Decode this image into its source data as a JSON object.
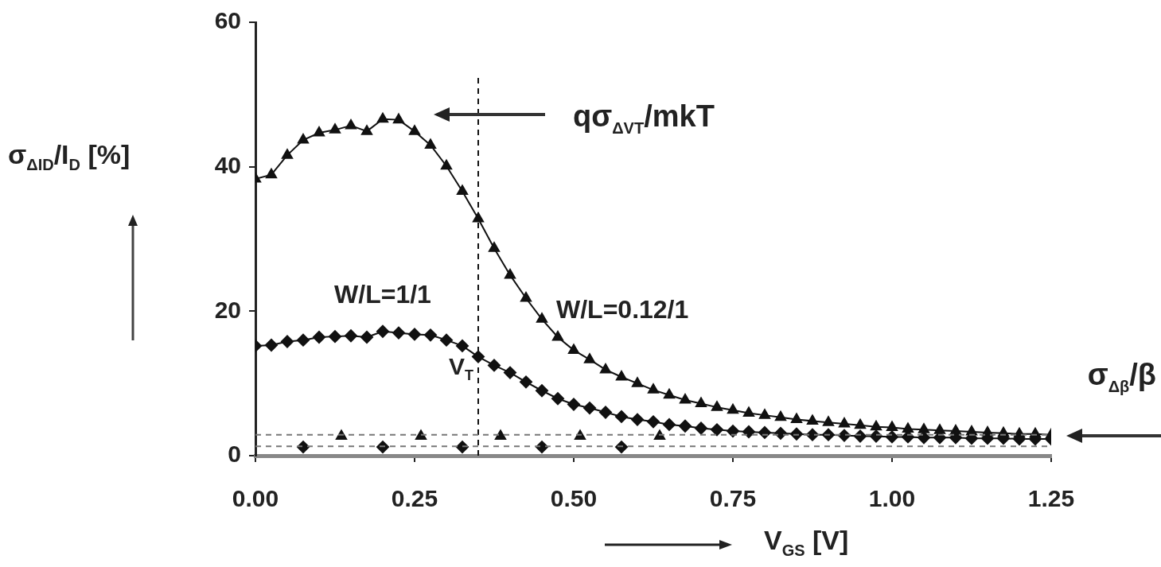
{
  "chart_data": {
    "type": "line",
    "xlabel": "V$_{GS}$ [V]",
    "ylabel": "σ$_{ΔID}$/I$_{D}$ [%]",
    "xlim": [
      0,
      1.25
    ],
    "ylim": [
      0,
      60
    ],
    "xticks": [
      {
        "value": 0,
        "label": "0.00"
      },
      {
        "value": 0.25,
        "label": "0.25"
      },
      {
        "value": 0.5,
        "label": "0.50"
      },
      {
        "value": 0.75,
        "label": "0.75"
      },
      {
        "value": 1,
        "label": "1.00"
      },
      {
        "value": 1.25,
        "label": "1.25"
      }
    ],
    "yticks": [
      0,
      20,
      40,
      60
    ],
    "grid": false,
    "legend": false,
    "x": [
      0,
      0.025,
      0.05,
      0.075,
      0.1,
      0.125,
      0.15,
      0.175,
      0.2,
      0.225,
      0.25,
      0.275,
      0.3,
      0.325,
      0.35,
      0.375,
      0.4,
      0.425,
      0.45,
      0.475,
      0.5,
      0.525,
      0.55,
      0.575,
      0.6,
      0.625,
      0.65,
      0.675,
      0.7,
      0.725,
      0.75,
      0.775,
      0.8,
      0.825,
      0.85,
      0.875,
      0.9,
      0.925,
      0.95,
      0.975,
      1,
      1.025,
      1.05,
      1.075,
      1.1,
      1.125,
      1.15,
      1.175,
      1.2,
      1.225,
      1.25
    ],
    "series": [
      {
        "name": "W/L=1/1",
        "marker": "diamond",
        "color": "#111111",
        "values": [
          15.2,
          15.3,
          15.8,
          16.0,
          16.4,
          16.5,
          16.6,
          16.4,
          17.2,
          17.0,
          16.8,
          16.7,
          16.0,
          15.2,
          13.7,
          12.5,
          11.5,
          10.2,
          9.0,
          7.9,
          7.1,
          6.6,
          6.0,
          5.4,
          5.0,
          4.7,
          4.3,
          4.1,
          3.8,
          3.6,
          3.4,
          3.3,
          3.2,
          3.1,
          3.0,
          2.9,
          2.9,
          2.8,
          2.7,
          2.7,
          2.6,
          2.6,
          2.5,
          2.5,
          2.5,
          2.4,
          2.4,
          2.4,
          2.3,
          2.3,
          2.3
        ]
      },
      {
        "name": "W/L=0.12/1",
        "marker": "triangle",
        "color": "#111111",
        "values": [
          38.3,
          38.9,
          41.6,
          43.7,
          44.7,
          45.1,
          45.7,
          44.9,
          46.6,
          46.5,
          44.9,
          43.0,
          40.1,
          36.6,
          32.8,
          28.7,
          25.0,
          21.8,
          18.9,
          16.4,
          14.6,
          13.3,
          11.9,
          10.9,
          10.0,
          9.1,
          8.4,
          7.7,
          7.2,
          6.7,
          6.3,
          5.9,
          5.6,
          5.3,
          5.0,
          4.8,
          4.6,
          4.4,
          4.2,
          4.0,
          3.9,
          3.7,
          3.6,
          3.5,
          3.4,
          3.3,
          3.2,
          3.1,
          3.0,
          3.0,
          2.9
        ]
      },
      {
        "type": "scatter",
        "marker": "triangle",
        "color": "#111111",
        "x": [
          0.135,
          0.26,
          0.385,
          0.51,
          0.635
        ],
        "values": [
          2.7,
          2.7,
          2.7,
          2.7,
          2.7
        ]
      },
      {
        "type": "scatter",
        "marker": "diamond",
        "color": "#111111",
        "x": [
          0.075,
          0.2,
          0.325,
          0.45,
          0.575
        ],
        "values": [
          1.2,
          1.2,
          1.2,
          1.2,
          1.2
        ]
      }
    ],
    "ref_lines": [
      {
        "axis": "x",
        "value": 0.35,
        "label": "V$_{T}$",
        "line_style": "dashed",
        "color": "#111111"
      },
      {
        "axis": "y",
        "value": 2.9,
        "line_style": "dashed",
        "color": "#777777"
      },
      {
        "axis": "y",
        "value": 1.3,
        "line_style": "dashed",
        "color": "#777777"
      }
    ],
    "annotations": [
      "qσ$_{ΔVT}$/mkT",
      "σ$_{Δβ}$/β"
    ]
  }
}
